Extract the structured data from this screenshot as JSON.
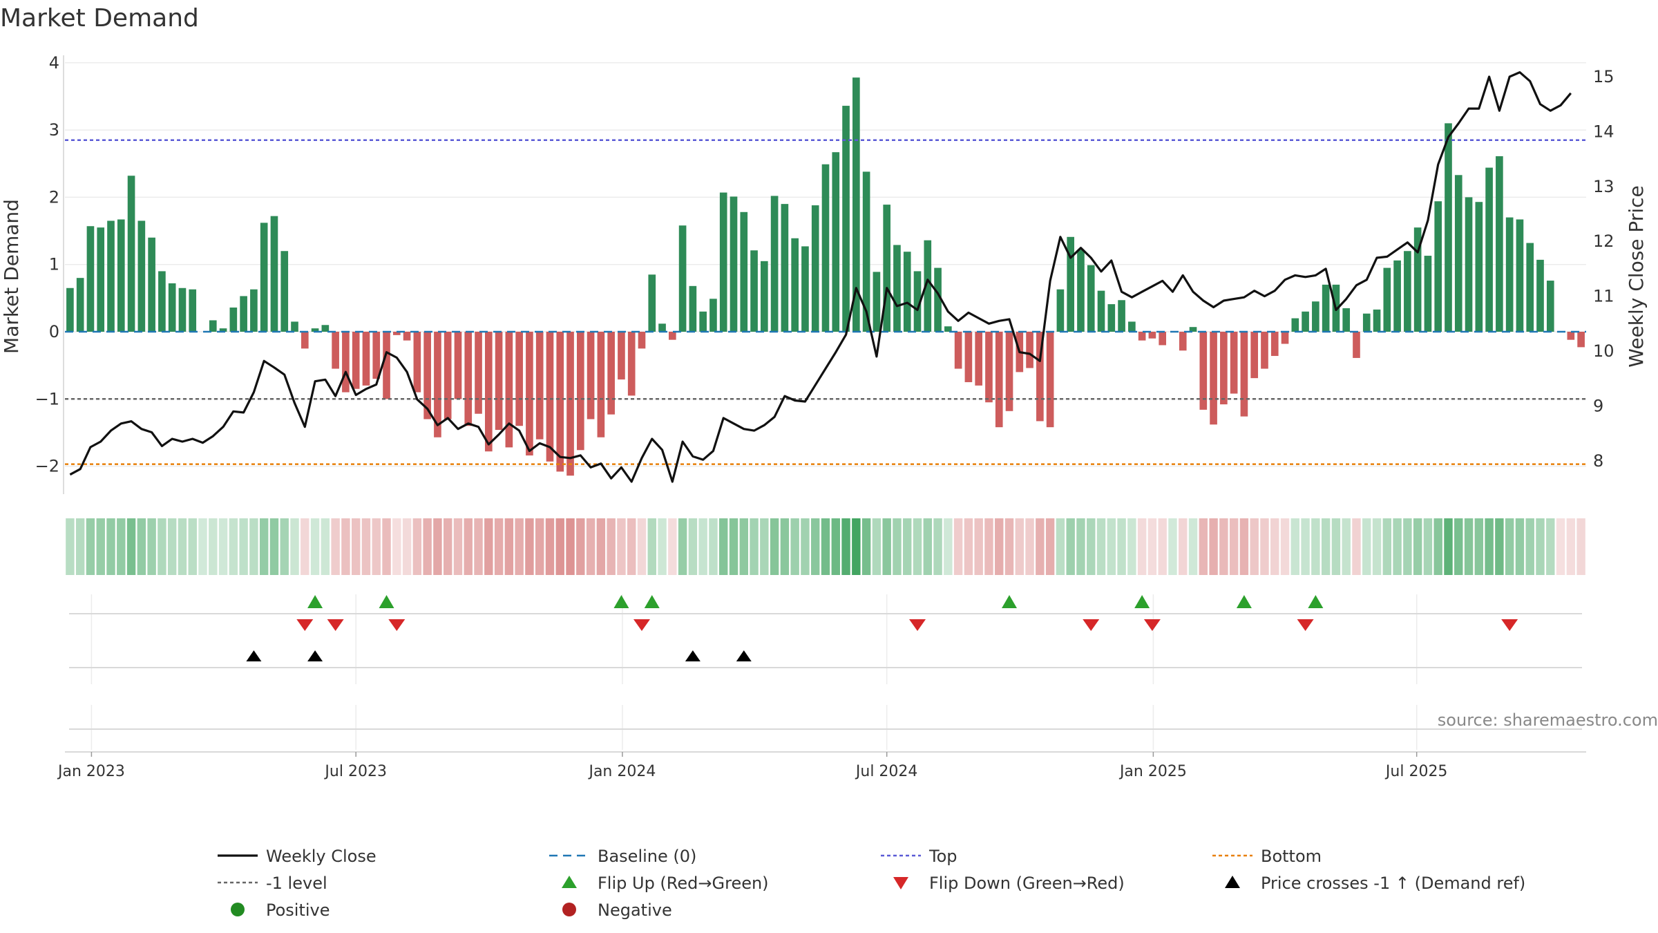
{
  "chart_data": {
    "type": "bar",
    "title": "Market Demand",
    "ylabel_left": "Market Demand",
    "ylabel_right": "Weekly Close Price",
    "ylim_left": [
      -2.4,
      4.0
    ],
    "ylim_right": [
      7.4,
      15.3
    ],
    "yticks_left": [
      "4",
      "3",
      "2",
      "1",
      "0",
      "−1",
      "−2"
    ],
    "yticks_left_values": [
      4,
      3,
      2,
      1,
      0,
      -1,
      -2
    ],
    "yticks_right": [
      "15",
      "14",
      "13",
      "12",
      "11",
      "10",
      "9",
      "8"
    ],
    "yticks_right_values": [
      15,
      14,
      13,
      12,
      11,
      10,
      9,
      8
    ],
    "x_start_week": "2022-12-18",
    "xticks": [
      {
        "label": "Jan 2023",
        "week": 2.1
      },
      {
        "label": "Jul 2023",
        "week": 28.0
      },
      {
        "label": "Jan 2024",
        "week": 54.1
      },
      {
        "label": "Jul 2024",
        "week": 80.0
      },
      {
        "label": "Jan 2025",
        "week": 106.1
      },
      {
        "label": "Jul 2025",
        "week": 131.9
      }
    ],
    "reference_lines": {
      "top": 2.85,
      "minus_one": -1.0,
      "bottom": -1.97,
      "baseline": 0
    },
    "demand": [
      0.65,
      0.8,
      1.57,
      1.55,
      1.65,
      1.67,
      2.32,
      1.65,
      1.4,
      0.9,
      0.72,
      0.65,
      0.63,
      0,
      0.17,
      0.05,
      0.36,
      0.53,
      0.63,
      1.62,
      1.72,
      1.2,
      0.15,
      -0.25,
      0.05,
      0.1,
      -0.55,
      -0.9,
      -0.85,
      -0.8,
      -0.7,
      -1.0,
      -0.05,
      -0.13,
      -0.9,
      -1.3,
      -1.57,
      -1.3,
      -1.0,
      -1.4,
      -1.22,
      -1.78,
      -1.46,
      -1.72,
      -1.4,
      -1.84,
      -1.6,
      -1.93,
      -2.08,
      -2.14,
      -1.76,
      -1.3,
      -1.57,
      -1.23,
      -0.71,
      -0.95,
      -0.25,
      0.85,
      0.12,
      -0.12,
      1.58,
      0.68,
      0.3,
      0.49,
      2.07,
      2.01,
      1.78,
      1.21,
      1.05,
      2.02,
      1.9,
      1.39,
      1.27,
      1.88,
      2.49,
      2.67,
      3.36,
      3.78,
      2.38,
      0.89,
      1.89,
      1.29,
      1.19,
      0.9,
      1.36,
      0.95,
      0.08,
      -0.55,
      -0.75,
      -0.8,
      -1.05,
      -1.42,
      -1.18,
      -0.6,
      -0.54,
      -1.33,
      -1.42,
      0.63,
      1.41,
      1.22,
      0.99,
      0.61,
      0.41,
      0.47,
      0.15,
      -0.13,
      -0.1,
      -0.2,
      0,
      -0.28,
      0.07,
      -1.16,
      -1.38,
      -1.08,
      -0.92,
      -1.26,
      -0.69,
      -0.55,
      -0.36,
      -0.18,
      0.2,
      0.3,
      0.45,
      0.7,
      0.7,
      0.35,
      -0.39,
      0.27,
      0.33,
      0.95,
      1.06,
      1.2,
      1.55,
      1.13,
      1.94,
      3.1,
      2.33,
      2.0,
      1.93,
      2.44,
      2.61,
      1.7,
      1.67,
      1.32,
      1.07,
      0.76,
      -0.01,
      -0.12,
      -0.23
    ],
    "close": [
      7.75,
      7.85,
      8.25,
      8.35,
      8.55,
      8.68,
      8.72,
      8.58,
      8.52,
      8.27,
      8.4,
      8.35,
      8.4,
      8.33,
      8.45,
      8.62,
      8.9,
      8.88,
      9.25,
      9.82,
      9.7,
      9.57,
      9.05,
      8.62,
      9.45,
      9.48,
      9.18,
      9.62,
      9.2,
      9.31,
      9.39,
      9.98,
      9.88,
      9.62,
      9.12,
      8.95,
      8.65,
      8.78,
      8.58,
      8.68,
      8.62,
      8.3,
      8.48,
      8.68,
      8.55,
      8.18,
      8.32,
      8.25,
      8.07,
      8.05,
      8.1,
      7.88,
      7.95,
      7.68,
      7.88,
      7.62,
      8.05,
      8.4,
      8.2,
      7.62,
      8.35,
      8.08,
      8.02,
      8.18,
      8.78,
      8.68,
      8.58,
      8.55,
      8.65,
      8.8,
      9.18,
      9.1,
      9.08,
      9.38,
      9.68,
      9.98,
      10.3,
      11.15,
      10.72,
      9.9,
      11.15,
      10.82,
      10.88,
      10.75,
      11.3,
      11.05,
      10.72,
      10.55,
      10.7,
      10.6,
      10.5,
      10.55,
      10.58,
      9.98,
      9.95,
      9.82,
      11.28,
      12.08,
      11.7,
      11.88,
      11.7,
      11.45,
      11.65,
      11.08,
      10.98,
      11.08,
      11.18,
      11.28,
      11.08,
      11.38,
      11.08,
      10.92,
      10.8,
      10.92,
      10.95,
      10.98,
      11.1,
      11.0,
      11.1,
      11.3,
      11.38,
      11.35,
      11.38,
      11.5,
      10.75,
      10.95,
      11.2,
      11.3,
      11.7,
      11.72,
      11.85,
      11.98,
      11.8,
      12.38,
      13.4,
      13.9,
      14.15,
      14.42,
      14.42,
      15.0,
      14.38,
      15.0,
      15.08,
      14.92,
      14.5,
      14.38,
      14.48,
      14.7
    ],
    "flip_up_weeks": [
      24,
      31,
      54,
      57,
      92,
      105,
      115,
      122
    ],
    "flip_down_weeks": [
      23,
      26,
      32,
      56,
      83,
      100,
      106,
      121,
      141
    ],
    "cross_up_weeks": [
      18,
      24,
      61,
      66
    ],
    "source": "source: sharemaestro.com",
    "legend": [
      {
        "label": "Weekly Close",
        "marker": "line",
        "color": "#111111"
      },
      {
        "label": "Baseline (0)",
        "marker": "dash",
        "color": "#1f77b4"
      },
      {
        "label": "Top",
        "marker": "dot",
        "color": "#5b5bd6"
      },
      {
        "label": "Bottom",
        "marker": "dot",
        "color": "#e8800a"
      },
      {
        "label": "-1 level",
        "marker": "dot",
        "color": "#666666"
      },
      {
        "label": "Flip Up (Red→Green)",
        "marker": "tri-up",
        "color": "#2ca02c"
      },
      {
        "label": "Flip Down (Green→Red)",
        "marker": "tri-down",
        "color": "#d62728"
      },
      {
        "label": "Price crosses -1 ↑ (Demand ref)",
        "marker": "tri-up",
        "color": "#000000"
      },
      {
        "label": "Positive",
        "marker": "circle",
        "color": "#228b22"
      },
      {
        "label": "Negative",
        "marker": "circle",
        "color": "#b22222"
      }
    ],
    "colors": {
      "positive": "#2e8b57",
      "negative": "#cd5c5c",
      "close": "#111111"
    }
  }
}
